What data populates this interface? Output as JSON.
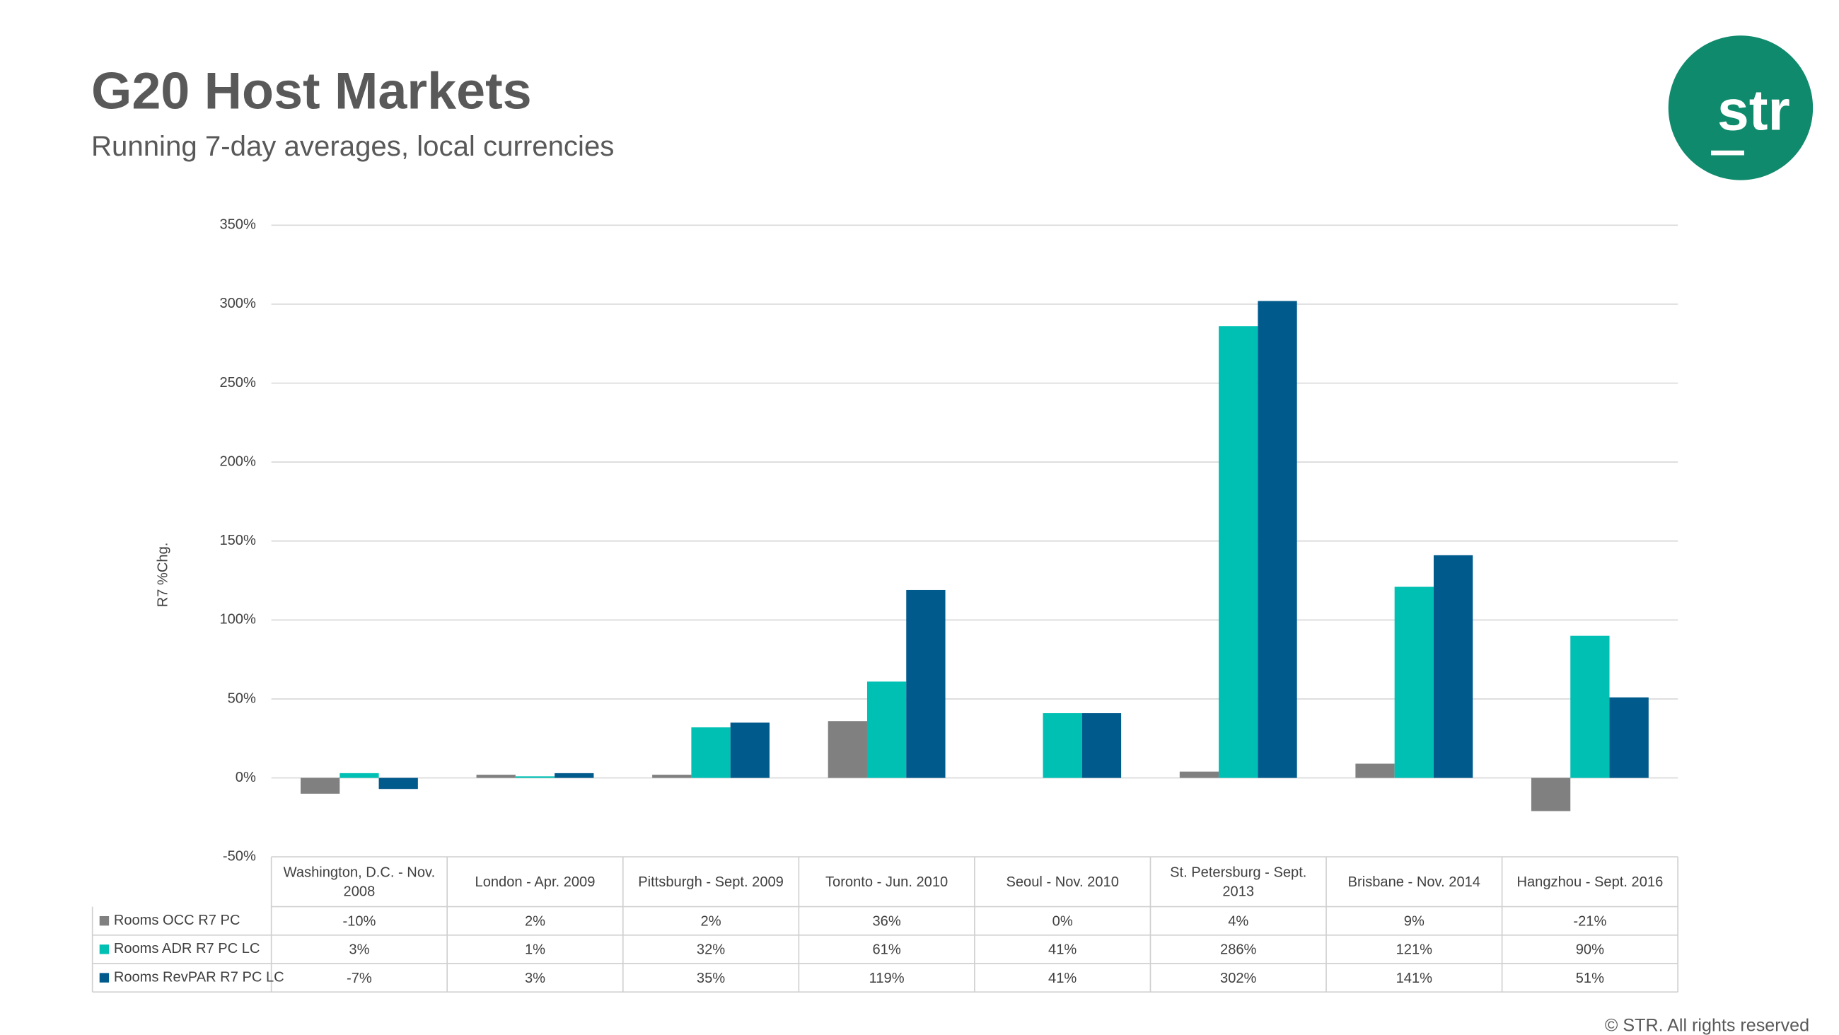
{
  "chart_data": {
    "type": "bar",
    "title": "G20 Host Markets",
    "subtitle": "Running 7-day averages, local currencies",
    "y_label": "R7 %Chg.",
    "categories": [
      "Washington, D.C. - Nov. 2008",
      "London - Apr. 2009",
      "Pittsburgh - Sept. 2009",
      "Toronto - Jun. 2010",
      "Seoul - Nov. 2010",
      "St. Petersburg - Sept. 2013",
      "Brisbane - Nov. 2014",
      "Hangzhou - Sept. 2016"
    ],
    "series": [
      {
        "name": "Rooms OCC R7 PC",
        "color": "#808080",
        "values": [
          -10,
          2,
          2,
          36,
          0,
          4,
          9,
          -21
        ],
        "value_labels": [
          "-10%",
          "2%",
          "2%",
          "36%",
          "0%",
          "4%",
          "9%",
          "-21%"
        ]
      },
      {
        "name": "Rooms ADR R7 PC LC",
        "color": "#00bfb3",
        "values": [
          3,
          1,
          32,
          61,
          41,
          286,
          121,
          90
        ],
        "value_labels": [
          "3%",
          "1%",
          "32%",
          "61%",
          "41%",
          "286%",
          "121%",
          "90%"
        ]
      },
      {
        "name": "Rooms RevPAR R7 PC LC",
        "color": "#005a8c",
        "values": [
          -7,
          3,
          35,
          119,
          41,
          302,
          141,
          51
        ],
        "value_labels": [
          "-7%",
          "3%",
          "35%",
          "119%",
          "41%",
          "302%",
          "141%",
          "51%"
        ]
      }
    ],
    "ylim": [
      -50,
      350
    ],
    "yticks": [
      {
        "value": -50,
        "label": "-50%"
      },
      {
        "value": 0,
        "label": "0%"
      },
      {
        "value": 50,
        "label": "50%"
      },
      {
        "value": 100,
        "label": "100%"
      },
      {
        "value": 150,
        "label": "150%"
      },
      {
        "value": 200,
        "label": "200%"
      },
      {
        "value": 250,
        "label": "250%"
      },
      {
        "value": 300,
        "label": "300%"
      },
      {
        "value": 350,
        "label": "350%"
      }
    ],
    "grid": true
  },
  "logo": "str",
  "footer": "© STR. All rights reserved"
}
